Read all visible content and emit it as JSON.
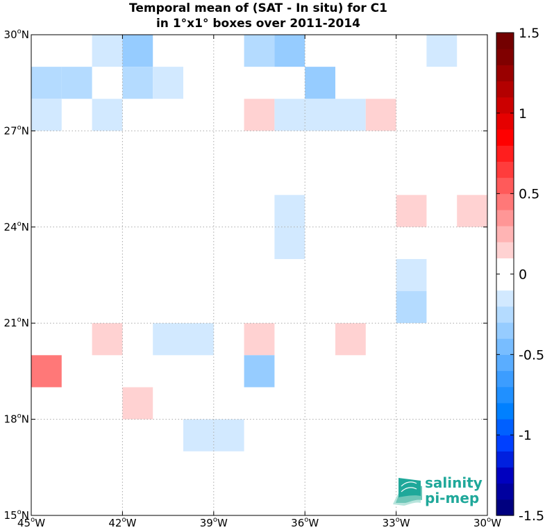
{
  "chart_data": {
    "type": "heatmap",
    "title_lines": [
      "Temporal mean of (SAT - In situ) for C1",
      "in 1°x1° boxes over 2011-2014"
    ],
    "x_ticks": [
      {
        "lon": -45,
        "label": "45°W"
      },
      {
        "lon": -42,
        "label": "42°W"
      },
      {
        "lon": -39,
        "label": "39°W"
      },
      {
        "lon": -36,
        "label": "36°W"
      },
      {
        "lon": -33,
        "label": "33°W"
      },
      {
        "lon": -30,
        "label": "30°W"
      }
    ],
    "y_ticks": [
      {
        "lat": 15,
        "label": "15°N"
      },
      {
        "lat": 18,
        "label": "18°N"
      },
      {
        "lat": 21,
        "label": "21°N"
      },
      {
        "lat": 24,
        "label": "24°N"
      },
      {
        "lat": 27,
        "label": "27°N"
      },
      {
        "lat": 30,
        "label": "30°N"
      }
    ],
    "xlim": [
      -45,
      -30
    ],
    "ylim": [
      15,
      30
    ],
    "grid": true,
    "colorbar": {
      "range": [
        -1.5,
        1.5
      ],
      "ticks": [
        {
          "value": 1.5,
          "label": "1.5"
        },
        {
          "value": 1,
          "label": "1"
        },
        {
          "value": 0.5,
          "label": "0.5"
        },
        {
          "value": 0,
          "label": "0"
        },
        {
          "value": -0.5,
          "label": "-0.5"
        },
        {
          "value": -1,
          "label": "-1"
        },
        {
          "value": -1.5,
          "label": "-1.5"
        }
      ],
      "colors": [
        "#00007f",
        "#00009f",
        "#0000bf",
        "#0020df",
        "#0040ff",
        "#0060ff",
        "#0080ff",
        "#2090ff",
        "#3c9dff",
        "#5aadff",
        "#78bdff",
        "#96ccff",
        "#b4dbff",
        "#d2e9ff",
        "#ffffff",
        "#ffffff",
        "#ffd2d2",
        "#ffb4b4",
        "#ff9696",
        "#ff7878",
        "#ff5a5a",
        "#ff3c3c",
        "#ff1e1e",
        "#ff0000",
        "#e60000",
        "#cc0000",
        "#b30000",
        "#990000",
        "#800000",
        "#730000"
      ]
    },
    "cells": [
      {
        "lon": -43,
        "lat": 29,
        "value": -0.15
      },
      {
        "lon": -42,
        "lat": 29,
        "value": -0.4
      },
      {
        "lon": -38,
        "lat": 29,
        "value": -0.25
      },
      {
        "lon": -37,
        "lat": 29,
        "value": -0.4
      },
      {
        "lon": -32,
        "lat": 29,
        "value": -0.15
      },
      {
        "lon": -45,
        "lat": 28,
        "value": -0.25
      },
      {
        "lon": -44,
        "lat": 28,
        "value": -0.25
      },
      {
        "lon": -42,
        "lat": 28,
        "value": -0.25
      },
      {
        "lon": -41,
        "lat": 28,
        "value": -0.15
      },
      {
        "lon": -36,
        "lat": 28,
        "value": -0.3
      },
      {
        "lon": -45,
        "lat": 27,
        "value": -0.15
      },
      {
        "lon": -43,
        "lat": 27,
        "value": -0.15
      },
      {
        "lon": -38,
        "lat": 27,
        "value": 0.15
      },
      {
        "lon": -37,
        "lat": 27,
        "value": -0.15
      },
      {
        "lon": -36,
        "lat": 27,
        "value": -0.15
      },
      {
        "lon": -35,
        "lat": 27,
        "value": -0.15
      },
      {
        "lon": -34,
        "lat": 27,
        "value": 0.15
      },
      {
        "lon": -37,
        "lat": 24,
        "value": -0.15
      },
      {
        "lon": -33,
        "lat": 24,
        "value": 0.15
      },
      {
        "lon": -31,
        "lat": 24,
        "value": 0.15
      },
      {
        "lon": -37,
        "lat": 23,
        "value": -0.15
      },
      {
        "lon": -33,
        "lat": 22,
        "value": -0.15
      },
      {
        "lon": -33,
        "lat": 21,
        "value": -0.25
      },
      {
        "lon": -43,
        "lat": 20,
        "value": 0.15
      },
      {
        "lon": -41,
        "lat": 20,
        "value": -0.15
      },
      {
        "lon": -40,
        "lat": 20,
        "value": -0.15
      },
      {
        "lon": -38,
        "lat": 20,
        "value": 0.15
      },
      {
        "lon": -35,
        "lat": 20,
        "value": 0.15
      },
      {
        "lon": -45,
        "lat": 19,
        "value": 0.4
      },
      {
        "lon": -38,
        "lat": 19,
        "value": -0.35
      },
      {
        "lon": -42,
        "lat": 18,
        "value": 0.15
      },
      {
        "lon": -40,
        "lat": 17,
        "value": -0.15
      },
      {
        "lon": -39,
        "lat": 17,
        "value": -0.15
      }
    ]
  },
  "logo": {
    "line1": "salinity",
    "line2": "pi-mep",
    "color": "#1fa89a"
  }
}
